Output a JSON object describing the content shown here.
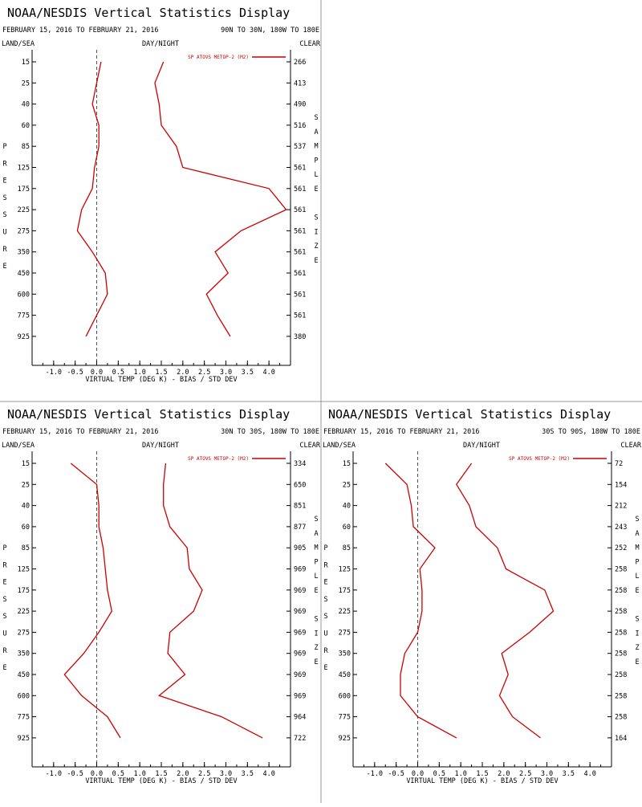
{
  "colors": {
    "line": "#cc0000",
    "axis": "#000000",
    "zero": "#555555",
    "divider": "#999999"
  },
  "panels": [
    {
      "title": "NOAA/NESDIS Vertical Statistics Display",
      "date_range": "FEBRUARY 15, 2016 TO FEBRUARY 21, 2016",
      "region": "90N TO 30N, 180W TO 180E",
      "land_sea": "LAND/SEA",
      "day_night": "DAY/NIGHT",
      "clear": "CLEAR",
      "legend": "SP ATOVS METOP-2 (M2)",
      "left_axis_letters": [
        "P",
        "R",
        "E",
        "S",
        "S",
        "U",
        "R",
        "E"
      ],
      "right_axis_letters": [
        "S",
        "A",
        "M",
        "P",
        "L",
        "E",
        "",
        "S",
        "I",
        "Z",
        "E"
      ],
      "xlabel": "VIRTUAL TEMP (DEG K) - BIAS / STD DEV"
    },
    {
      "title": "NOAA/NESDIS Vertical Statistics Display",
      "date_range": "FEBRUARY 15, 2016 TO FEBRUARY 21, 2016",
      "region": "30N TO 30S, 180W TO 180E",
      "land_sea": "LAND/SEA",
      "day_night": "DAY/NIGHT",
      "clear": "CLEAR",
      "legend": "SP ATOVS METOP-2 (M2)",
      "left_axis_letters": [
        "P",
        "R",
        "E",
        "S",
        "S",
        "U",
        "R",
        "E"
      ],
      "right_axis_letters": [
        "S",
        "A",
        "M",
        "P",
        "L",
        "E",
        "",
        "S",
        "I",
        "Z",
        "E"
      ],
      "xlabel": "VIRTUAL TEMP (DEG K) - BIAS / STD DEV"
    },
    {
      "title": "NOAA/NESDIS Vertical Statistics Display",
      "date_range": "FEBRUARY 15, 2016 TO FEBRUARY 21, 2016",
      "region": "30S TO 90S, 180W TO 180E",
      "land_sea": "LAND/SEA",
      "day_night": "DAY/NIGHT",
      "clear": "CLEAR",
      "legend": "SP ATOVS METOP-2 (M2)",
      "left_axis_letters": [
        "P",
        "R",
        "E",
        "S",
        "S",
        "U",
        "R",
        "E"
      ],
      "right_axis_letters": [
        "S",
        "A",
        "M",
        "P",
        "L",
        "E",
        "",
        "S",
        "I",
        "Z",
        "E"
      ],
      "xlabel": "VIRTUAL TEMP (DEG K) - BIAS / STD DEV"
    }
  ],
  "chart_data": [
    {
      "type": "line",
      "xlim": [
        -1.5,
        4.5
      ],
      "xticks": [
        -1.0,
        -0.5,
        0.0,
        0.5,
        1.0,
        1.5,
        2.0,
        2.5,
        3.0,
        3.5,
        4.0
      ],
      "xtick_labels": [
        "-1.0",
        "-0.5",
        "0.0",
        "0.5",
        "1.0",
        "1.5",
        "2.0",
        "2.5",
        "3.0",
        "3.5",
        "4.0"
      ],
      "pressure_levels": [
        "15",
        "25",
        "40",
        "60",
        "85",
        "125",
        "175",
        "225",
        "275",
        "350",
        "450",
        "600",
        "775",
        "925"
      ],
      "sample_size": [
        "266",
        "413",
        "490",
        "516",
        "537",
        "561",
        "561",
        "561",
        "561",
        "561",
        "561",
        "561",
        "561",
        "380"
      ],
      "series": [
        {
          "values": [
            0.1,
            0.0,
            -0.1,
            0.05,
            0.05,
            -0.05,
            -0.1,
            -0.35,
            -0.45,
            -0.1,
            0.2,
            0.25,
            0.0,
            -0.25
          ]
        },
        {
          "values": [
            1.55,
            1.35,
            1.45,
            1.5,
            1.85,
            2.0,
            4.0,
            4.4,
            3.35,
            2.75,
            3.05,
            2.55,
            2.8,
            3.1
          ]
        }
      ]
    },
    {
      "type": "line",
      "xlim": [
        -1.5,
        4.5
      ],
      "xticks": [
        -1.0,
        -0.5,
        0.0,
        0.5,
        1.0,
        1.5,
        2.0,
        2.5,
        3.0,
        3.5,
        4.0
      ],
      "xtick_labels": [
        "-1.0",
        "-0.5",
        "0.0",
        "0.5",
        "1.0",
        "1.5",
        "2.0",
        "2.5",
        "3.0",
        "3.5",
        "4.0"
      ],
      "pressure_levels": [
        "15",
        "25",
        "40",
        "60",
        "85",
        "125",
        "175",
        "225",
        "275",
        "350",
        "450",
        "600",
        "775",
        "925"
      ],
      "sample_size": [
        "334",
        "650",
        "851",
        "877",
        "905",
        "969",
        "969",
        "969",
        "969",
        "969",
        "969",
        "969",
        "964",
        "722"
      ],
      "series": [
        {
          "values": [
            -0.6,
            0.0,
            0.05,
            0.05,
            0.15,
            0.2,
            0.25,
            0.35,
            0.05,
            -0.3,
            -0.75,
            -0.35,
            0.25,
            0.55
          ]
        },
        {
          "values": [
            1.6,
            1.55,
            1.55,
            1.7,
            2.1,
            2.15,
            2.45,
            2.25,
            1.7,
            1.65,
            2.05,
            1.45,
            2.9,
            3.85
          ]
        }
      ]
    },
    {
      "type": "line",
      "xlim": [
        -1.5,
        4.5
      ],
      "xticks": [
        -1.0,
        -0.5,
        0.0,
        0.5,
        1.0,
        1.5,
        2.0,
        2.5,
        3.0,
        3.5,
        4.0
      ],
      "xtick_labels": [
        "-1.0",
        "-0.5",
        "0.0",
        "0.5",
        "1.0",
        "1.5",
        "2.0",
        "2.5",
        "3.0",
        "3.5",
        "4.0"
      ],
      "pressure_levels": [
        "15",
        "25",
        "40",
        "60",
        "85",
        "125",
        "175",
        "225",
        "275",
        "350",
        "450",
        "600",
        "775",
        "925"
      ],
      "sample_size": [
        "72",
        "154",
        "212",
        "243",
        "252",
        "258",
        "258",
        "258",
        "258",
        "258",
        "258",
        "258",
        "258",
        "164"
      ],
      "series": [
        {
          "values": [
            -0.75,
            -0.25,
            -0.15,
            -0.1,
            0.4,
            0.05,
            0.1,
            0.1,
            0.0,
            -0.3,
            -0.4,
            -0.4,
            0.0,
            0.9
          ]
        },
        {
          "values": [
            1.25,
            0.9,
            1.2,
            1.35,
            1.85,
            2.05,
            2.95,
            3.15,
            2.6,
            1.95,
            2.1,
            1.9,
            2.2,
            2.85
          ]
        }
      ]
    }
  ]
}
